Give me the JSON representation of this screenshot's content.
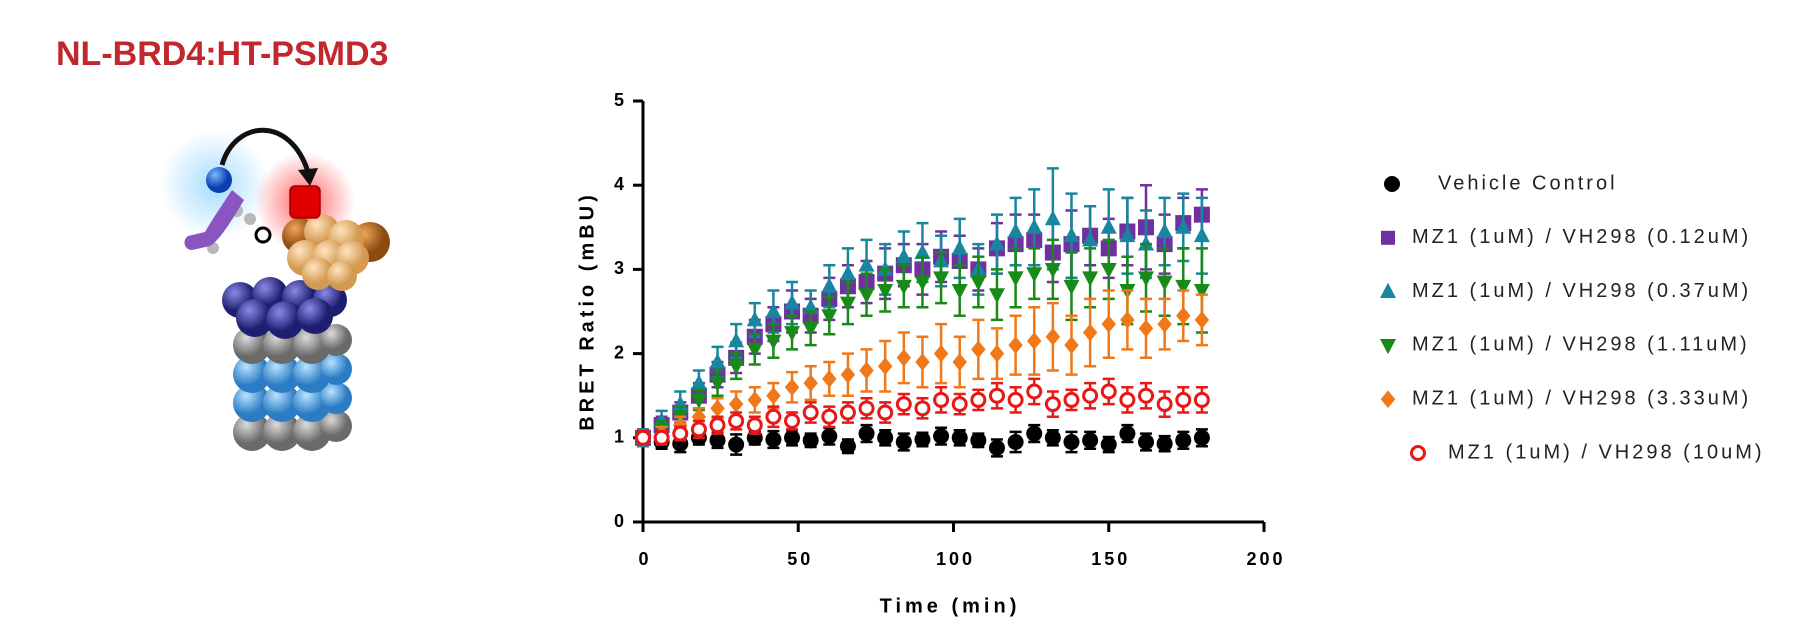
{
  "chart_data": {
    "type": "scatter",
    "title": "NL-BRD4:HT-PSMD3",
    "x_label": "Time (min)",
    "y_label": "BRET Ratio (mBU)",
    "xlim": [
      0,
      200
    ],
    "xticks": [
      0,
      50,
      100,
      150,
      200
    ],
    "ylim": [
      0,
      5
    ],
    "yticks": [
      0,
      1,
      2,
      3,
      4,
      5
    ],
    "x": [
      0,
      6,
      12,
      18,
      24,
      30,
      36,
      42,
      48,
      54,
      60,
      66,
      72,
      78,
      84,
      90,
      96,
      102,
      108,
      114,
      120,
      126,
      132,
      138,
      144,
      150,
      156,
      162,
      168,
      174,
      180
    ],
    "series": [
      {
        "name": "Vehicle Control",
        "color": "#000000",
        "marker": "circle",
        "values": [
          1.0,
          0.95,
          0.93,
          1.0,
          0.97,
          0.92,
          1.0,
          0.98,
          1.0,
          0.97,
          1.02,
          0.9,
          1.05,
          1.0,
          0.95,
          0.98,
          1.02,
          1.0,
          0.97,
          0.88,
          0.95,
          1.05,
          1.0,
          0.95,
          0.97,
          0.92,
          1.05,
          0.95,
          0.93,
          0.97,
          1.0
        ],
        "errors": [
          0.1,
          0.08,
          0.1,
          0.08,
          0.09,
          0.12,
          0.08,
          0.1,
          0.09,
          0.08,
          0.1,
          0.08,
          0.1,
          0.09,
          0.1,
          0.08,
          0.1,
          0.09,
          0.08,
          0.1,
          0.12,
          0.1,
          0.09,
          0.12,
          0.1,
          0.09,
          0.1,
          0.1,
          0.09,
          0.1,
          0.1
        ]
      },
      {
        "name": "MZ1 (1uM) / VH298 (0.12uM)",
        "color": "#7030a0",
        "marker": "square",
        "values": [
          1.0,
          1.15,
          1.3,
          1.5,
          1.75,
          1.95,
          2.2,
          2.35,
          2.5,
          2.45,
          2.65,
          2.8,
          2.85,
          2.95,
          3.05,
          3.0,
          3.15,
          3.1,
          3.0,
          3.25,
          3.3,
          3.35,
          3.2,
          3.3,
          3.4,
          3.25,
          3.45,
          3.5,
          3.3,
          3.55,
          3.65
        ],
        "errors": [
          0.1,
          0.1,
          0.12,
          0.15,
          0.15,
          0.18,
          0.2,
          0.2,
          0.25,
          0.2,
          0.25,
          0.25,
          0.25,
          0.3,
          0.25,
          0.3,
          0.3,
          0.3,
          0.25,
          0.3,
          0.35,
          0.3,
          0.35,
          0.4,
          0.35,
          0.35,
          0.4,
          0.5,
          0.35,
          0.3,
          0.3
        ]
      },
      {
        "name": "MZ1 (1uM) / VH298 (0.37uM)",
        "color": "#17869e",
        "marker": "triangle",
        "values": [
          1.0,
          1.2,
          1.4,
          1.65,
          1.9,
          2.15,
          2.4,
          2.5,
          2.6,
          2.55,
          2.8,
          2.95,
          3.05,
          3.0,
          3.15,
          3.2,
          3.1,
          3.25,
          3.0,
          3.3,
          3.45,
          3.5,
          3.6,
          3.4,
          3.35,
          3.5,
          3.4,
          3.3,
          3.45,
          3.5,
          3.4
        ],
        "errors": [
          0.1,
          0.12,
          0.15,
          0.15,
          0.18,
          0.2,
          0.2,
          0.25,
          0.25,
          0.2,
          0.25,
          0.3,
          0.3,
          0.3,
          0.3,
          0.35,
          0.3,
          0.35,
          0.3,
          0.35,
          0.4,
          0.45,
          0.6,
          0.5,
          0.4,
          0.45,
          0.45,
          0.4,
          0.4,
          0.4,
          0.45
        ]
      },
      {
        "name": "MZ1 (1uM) / VH298 (1.11uM)",
        "color": "#178a17",
        "marker": "triangle-down",
        "values": [
          1.0,
          1.1,
          1.25,
          1.45,
          1.65,
          1.85,
          2.05,
          2.15,
          2.25,
          2.3,
          2.45,
          2.6,
          2.7,
          2.75,
          2.8,
          2.85,
          2.9,
          2.75,
          2.85,
          2.7,
          2.9,
          2.95,
          3.0,
          2.8,
          2.9,
          3.0,
          2.75,
          2.9,
          2.85,
          2.8,
          2.75
        ],
        "errors": [
          0.08,
          0.1,
          0.12,
          0.12,
          0.15,
          0.15,
          0.18,
          0.2,
          0.2,
          0.2,
          0.22,
          0.25,
          0.25,
          0.25,
          0.25,
          0.3,
          0.3,
          0.3,
          0.3,
          0.3,
          0.35,
          0.3,
          0.35,
          0.4,
          0.35,
          0.35,
          0.4,
          0.4,
          0.4,
          0.45,
          0.5
        ]
      },
      {
        "name": "MZ1 (1uM) / VH298 (3.33uM)",
        "color": "#f07818",
        "marker": "diamond",
        "values": [
          1.0,
          1.05,
          1.15,
          1.25,
          1.35,
          1.4,
          1.45,
          1.5,
          1.6,
          1.65,
          1.7,
          1.75,
          1.8,
          1.85,
          1.95,
          1.9,
          2.0,
          1.9,
          2.05,
          2.0,
          2.1,
          2.15,
          2.2,
          2.1,
          2.25,
          2.35,
          2.4,
          2.3,
          2.35,
          2.45,
          2.4
        ],
        "errors": [
          0.08,
          0.08,
          0.1,
          0.1,
          0.12,
          0.15,
          0.15,
          0.15,
          0.18,
          0.2,
          0.2,
          0.25,
          0.25,
          0.3,
          0.3,
          0.3,
          0.35,
          0.3,
          0.35,
          0.3,
          0.35,
          0.4,
          0.4,
          0.35,
          0.4,
          0.4,
          0.35,
          0.35,
          0.3,
          0.3,
          0.3
        ]
      },
      {
        "name": "MZ1 (1uM) / VH298 (10uM)",
        "color": "#e81818",
        "marker": "open-circle",
        "values": [
          1.0,
          1.0,
          1.05,
          1.1,
          1.15,
          1.2,
          1.15,
          1.25,
          1.2,
          1.3,
          1.25,
          1.3,
          1.35,
          1.3,
          1.4,
          1.35,
          1.45,
          1.4,
          1.45,
          1.5,
          1.45,
          1.55,
          1.4,
          1.45,
          1.5,
          1.55,
          1.45,
          1.5,
          1.4,
          1.45,
          1.45
        ],
        "errors": [
          0.08,
          0.08,
          0.08,
          0.1,
          0.1,
          0.1,
          0.1,
          0.12,
          0.1,
          0.12,
          0.12,
          0.12,
          0.12,
          0.12,
          0.12,
          0.12,
          0.15,
          0.12,
          0.12,
          0.15,
          0.15,
          0.15,
          0.15,
          0.12,
          0.15,
          0.15,
          0.15,
          0.15,
          0.15,
          0.15,
          0.15
        ]
      }
    ]
  }
}
